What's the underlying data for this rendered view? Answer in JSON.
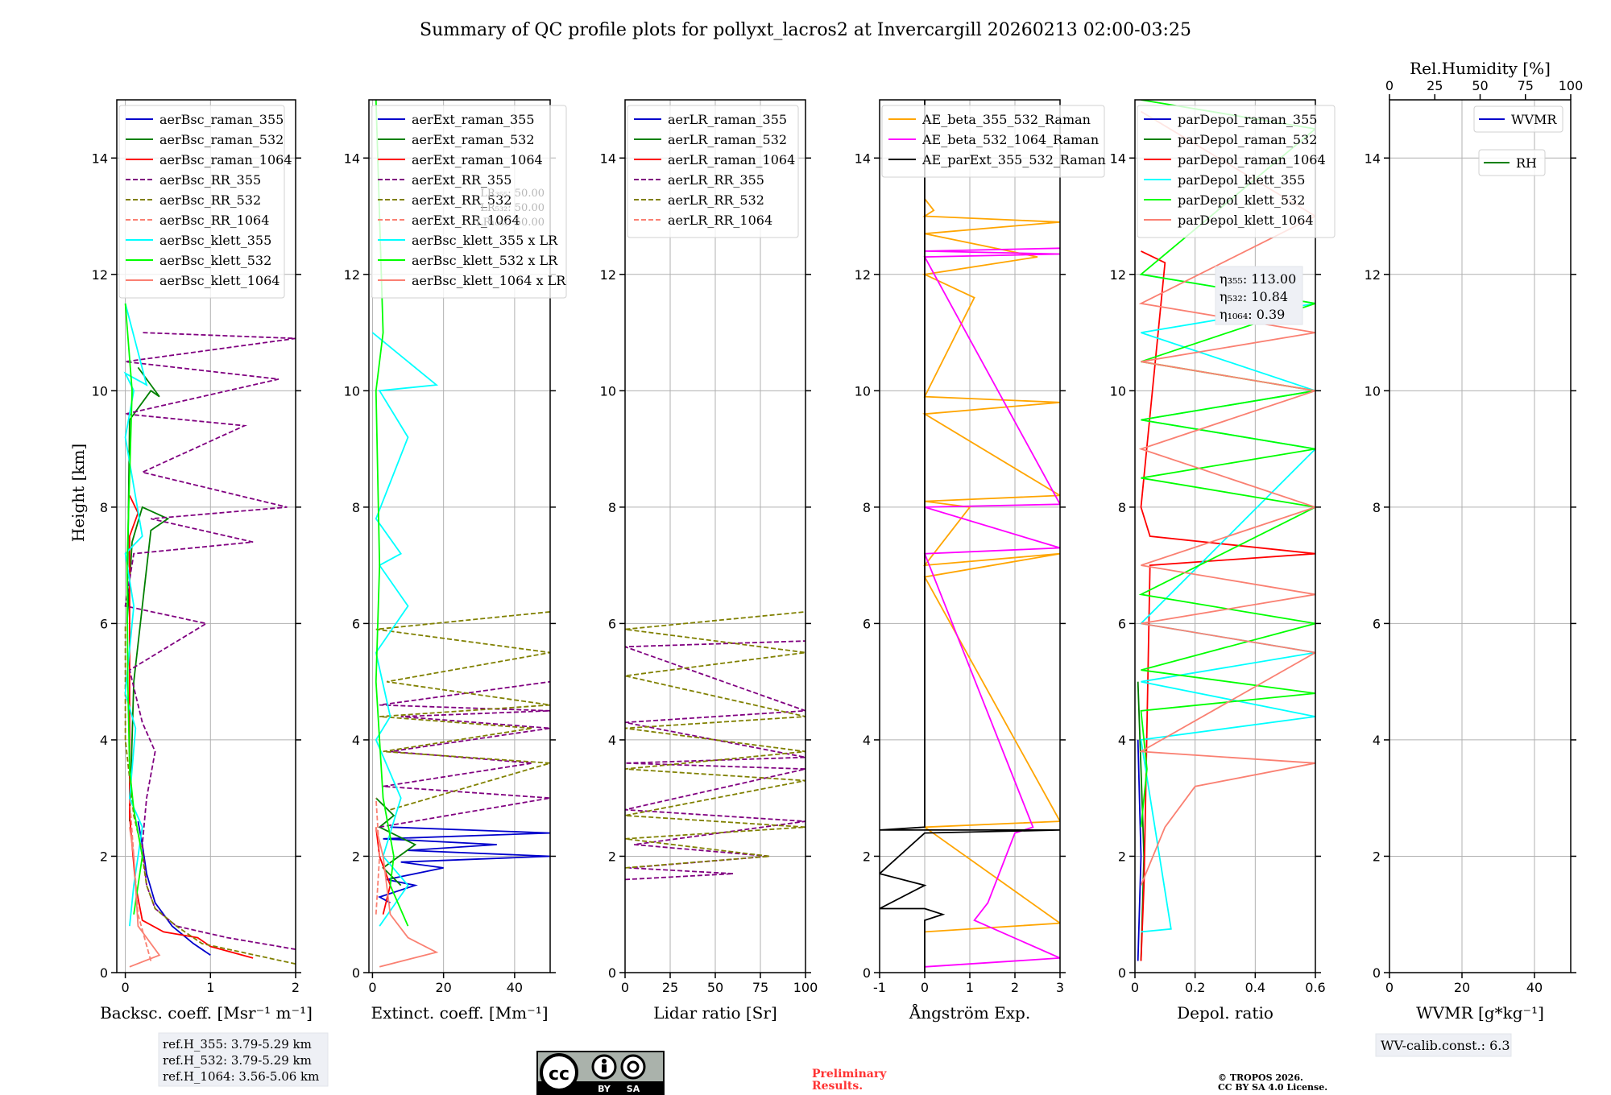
{
  "title": "Summary of QC profile plots for pollyxt_lacros2 at Invercargill 20260213 02:00-03:25",
  "ylabel": "Height [km]",
  "ylim": [
    0,
    15
  ],
  "yticks": [
    0,
    2,
    4,
    6,
    8,
    10,
    12,
    14
  ],
  "colors": {
    "blue": "#0000cc",
    "green": "#008000",
    "red": "#ff0000",
    "purple": "#800080",
    "olive": "#808000",
    "salmon": "#fa8072",
    "cyan": "#00ffff",
    "lime": "#00ff00",
    "orange": "#ffa500",
    "magenta": "#ff00ff",
    "black": "#000000"
  },
  "chart_data": [
    {
      "type": "line",
      "id": "bsc",
      "xlabel": "Backsc. coeff. [Msr⁻¹ m⁻¹]",
      "xlim": [
        -0.1,
        2
      ],
      "xticks": [
        0,
        1,
        2
      ],
      "legend_position": "top-left",
      "series": [
        {
          "name": "aerBsc_raman_355",
          "color": "blue",
          "dash": false,
          "x": [
            1.0,
            0.8,
            0.55,
            0.35,
            0.25,
            0.2,
            0.15
          ],
          "y": [
            0.3,
            0.5,
            0.8,
            1.2,
            1.7,
            2.2,
            2.6
          ]
        },
        {
          "name": "aerBsc_raman_532",
          "color": "green",
          "dash": false,
          "x": [
            0.05,
            0.1,
            0.3,
            0.5,
            0.2,
            0.08,
            0.02,
            0.05,
            0.3,
            0.4,
            0.15
          ],
          "y": [
            2.6,
            5.0,
            7.6,
            7.8,
            8.0,
            7.4,
            6.0,
            9.5,
            10.0,
            9.9,
            10.4
          ]
        },
        {
          "name": "aerBsc_raman_1064",
          "color": "red",
          "dash": false,
          "x": [
            1.5,
            1.0,
            0.85,
            0.45,
            0.2,
            0.12,
            0.05,
            0.05,
            0.15,
            0.05
          ],
          "y": [
            0.25,
            0.45,
            0.6,
            0.7,
            0.9,
            1.5,
            2.7,
            7.5,
            7.9,
            8.2
          ]
        },
        {
          "name": "aerBsc_RR_355",
          "color": "purple",
          "dash": true,
          "x": [
            2.0,
            1.2,
            0.6,
            0.35,
            0.25,
            0.2,
            0.25,
            0.35,
            0.2,
            0.05,
            0.95,
            0.0,
            0.1,
            1.5,
            0.3,
            1.9,
            0.2,
            1.4,
            0.0,
            1.8,
            0.0,
            2.0,
            0.2
          ],
          "y": [
            0.4,
            0.6,
            0.8,
            1.1,
            1.5,
            2.2,
            3.0,
            3.8,
            4.3,
            5.2,
            6.0,
            6.3,
            7.2,
            7.4,
            7.8,
            8.0,
            8.6,
            9.4,
            9.6,
            10.2,
            10.5,
            10.9,
            11.0
          ]
        },
        {
          "name": "aerBsc_RR_532",
          "color": "olive",
          "dash": true,
          "x": [
            2.0,
            0.9,
            0.6,
            0.35,
            0.25,
            0.18,
            0.1,
            0.0,
            0.0
          ],
          "y": [
            0.15,
            0.5,
            0.8,
            1.1,
            1.5,
            2.2,
            2.7,
            4.0,
            6.0
          ]
        },
        {
          "name": "aerBsc_RR_1064",
          "color": "salmon",
          "dash": true,
          "x": [
            0.3,
            0.15,
            0.1,
            0.05
          ],
          "y": [
            0.2,
            1.0,
            2.0,
            3.0
          ]
        },
        {
          "name": "aerBsc_klett_355",
          "color": "cyan",
          "dash": false,
          "x": [
            0.05,
            0.1,
            0.2,
            0.05,
            0.12,
            0.0,
            0.1,
            0.0,
            0.2,
            0.0,
            0.1,
            0.0,
            0.25,
            0.0
          ],
          "y": [
            0.8,
            1.5,
            2.5,
            3.0,
            4.2,
            4.8,
            6.3,
            7.2,
            7.5,
            9.2,
            10.0,
            10.3,
            10.1,
            11.5
          ]
        },
        {
          "name": "aerBsc_klett_532",
          "color": "lime",
          "dash": false,
          "x": [
            0.1,
            0.2,
            0.1,
            0.05,
            0.03,
            0.02,
            0.08,
            0.0
          ],
          "y": [
            1.0,
            2.0,
            2.8,
            3.5,
            5.0,
            7.0,
            10.0,
            11.5
          ]
        },
        {
          "name": "aerBsc_klett_1064",
          "color": "salmon",
          "dash": false,
          "x": [
            0.05,
            0.4,
            0.15,
            0.1,
            0.05
          ],
          "y": [
            0.1,
            0.3,
            0.8,
            2.0,
            2.5
          ]
        }
      ]
    },
    {
      "type": "line",
      "id": "ext",
      "xlabel": "Extinct. coeff. [Mm⁻¹]",
      "xlim": [
        -1,
        50
      ],
      "xticks": [
        0,
        20,
        40
      ],
      "legend_position": "top-left",
      "lr_note": [
        "LR₃₅₅: 50.00",
        "LR₅₃₂: 50.00",
        "LR₁₀₆₄: 50.00"
      ],
      "series": [
        {
          "name": "aerExt_raman_355",
          "color": "blue",
          "dash": false,
          "x": [
            5,
            2,
            12,
            4,
            20,
            8,
            50,
            10,
            35,
            3,
            50,
            5
          ],
          "y": [
            1.2,
            1.3,
            1.5,
            1.6,
            1.8,
            1.9,
            2.0,
            2.1,
            2.2,
            2.3,
            2.4,
            2.5
          ]
        },
        {
          "name": "aerExt_raman_532",
          "color": "green",
          "dash": false,
          "x": [
            8,
            3,
            12,
            2,
            6,
            1
          ],
          "y": [
            1.5,
            1.8,
            2.2,
            2.5,
            2.7,
            3.0
          ]
        },
        {
          "name": "aerExt_raman_1064",
          "color": "red",
          "dash": false,
          "x": [
            3,
            5,
            2,
            1
          ],
          "y": [
            1.0,
            1.5,
            2.0,
            2.5
          ]
        },
        {
          "name": "aerExt_RR_355",
          "color": "purple",
          "dash": true,
          "x": [
            2,
            50,
            3,
            45,
            5,
            50,
            8,
            50,
            2,
            50
          ],
          "y": [
            2.5,
            3.0,
            3.2,
            3.6,
            3.8,
            4.2,
            4.4,
            4.5,
            4.6,
            5.0
          ]
        },
        {
          "name": "aerExt_RR_532",
          "color": "olive",
          "dash": true,
          "x": [
            5,
            50,
            3,
            45,
            2,
            50,
            4,
            50,
            1,
            50
          ],
          "y": [
            2.8,
            3.6,
            3.8,
            4.2,
            4.4,
            4.6,
            5.0,
            5.5,
            5.9,
            6.2
          ]
        },
        {
          "name": "aerExt_RR_1064",
          "color": "salmon",
          "dash": true,
          "x": [
            1,
            2,
            1
          ],
          "y": [
            1.0,
            2.0,
            3.0
          ]
        },
        {
          "name": "aerBsc_klett_355 x LR",
          "color": "cyan",
          "dash": false,
          "x": [
            2,
            10,
            3,
            8,
            1,
            5,
            1,
            10,
            2,
            8,
            1,
            10,
            2,
            18,
            0
          ],
          "y": [
            0.8,
            1.5,
            2.0,
            3.0,
            4.0,
            4.4,
            5.5,
            6.3,
            7.0,
            7.2,
            7.8,
            9.2,
            10.0,
            10.1,
            11.0
          ]
        },
        {
          "name": "aerBsc_klett_532 x LR",
          "color": "lime",
          "dash": false,
          "x": [
            10,
            5,
            6,
            3,
            1,
            2,
            1,
            3,
            1
          ],
          "y": [
            0.8,
            1.5,
            2.0,
            3.0,
            5.0,
            7.0,
            10.0,
            11.0,
            15.0
          ]
        },
        {
          "name": "aerBsc_klett_1064 x LR",
          "color": "salmon",
          "dash": false,
          "x": [
            2,
            18,
            10,
            5,
            3,
            1
          ],
          "y": [
            0.1,
            0.35,
            0.6,
            1.0,
            2.0,
            2.5
          ]
        }
      ]
    },
    {
      "type": "line",
      "id": "lr",
      "xlabel": "Lidar ratio [Sr]",
      "xlim": [
        0,
        100
      ],
      "xticks": [
        0,
        25,
        50,
        75,
        100
      ],
      "legend_position": "top-left",
      "series": [
        {
          "name": "aerLR_raman_355",
          "color": "blue",
          "dash": false,
          "x": [],
          "y": []
        },
        {
          "name": "aerLR_raman_532",
          "color": "green",
          "dash": false,
          "x": [],
          "y": []
        },
        {
          "name": "aerLR_raman_1064",
          "color": "red",
          "dash": false,
          "x": [],
          "y": []
        },
        {
          "name": "aerLR_RR_355",
          "color": "purple",
          "dash": true,
          "x": [
            0,
            60,
            2,
            80,
            5,
            100,
            0,
            100,
            0,
            100,
            0,
            100,
            0,
            100
          ],
          "y": [
            1.6,
            1.7,
            1.8,
            2.0,
            2.2,
            2.6,
            2.8,
            3.5,
            3.6,
            3.7,
            4.3,
            4.5,
            5.6,
            5.7
          ]
        },
        {
          "name": "aerLR_RR_532",
          "color": "olive",
          "dash": true,
          "x": [
            0,
            80,
            0,
            100,
            0,
            100,
            0,
            100,
            0,
            100,
            0,
            100,
            0,
            100
          ],
          "y": [
            1.8,
            2.0,
            2.3,
            2.5,
            2.7,
            3.3,
            3.5,
            3.8,
            4.2,
            4.4,
            5.1,
            5.5,
            5.9,
            6.2
          ]
        },
        {
          "name": "aerLR_RR_1064",
          "color": "salmon",
          "dash": true,
          "x": [],
          "y": []
        }
      ]
    },
    {
      "type": "line",
      "id": "ae",
      "xlabel": "Ångström Exp.",
      "xlim": [
        -1,
        3
      ],
      "xticks": [
        -1,
        0,
        1,
        2,
        3
      ],
      "legend_position": "top-left",
      "series": [
        {
          "name": "AE_beta_355_532_Raman",
          "color": "orange",
          "dash": false,
          "x": [
            0,
            3,
            0,
            3,
            0,
            3,
            0,
            1,
            0,
            3,
            0,
            3,
            0,
            1.1,
            0,
            2.5,
            0,
            3,
            0,
            0.2,
            0
          ],
          "y": [
            0.7,
            0.85,
            2.5,
            2.6,
            6.8,
            7.2,
            7.0,
            8.0,
            8.1,
            8.2,
            9.6,
            9.8,
            9.9,
            11.6,
            12.0,
            12.3,
            12.7,
            12.9,
            13.0,
            13.1,
            13.3
          ]
        },
        {
          "name": "AE_beta_532_1064_Raman",
          "color": "magenta",
          "dash": false,
          "x": [
            0.0,
            3.0,
            1.1,
            1.4,
            1.6,
            1.8,
            2.0,
            2.4,
            0.0,
            3.0,
            0.0,
            3.0,
            0.0,
            3.0,
            0.0,
            3.0
          ],
          "y": [
            0.1,
            0.25,
            0.9,
            1.2,
            1.6,
            2.0,
            2.4,
            2.5,
            7.2,
            7.3,
            8.0,
            8.05,
            12.3,
            12.35,
            12.4,
            12.45
          ]
        },
        {
          "name": "AE_parExt_355_532_Raman",
          "color": "black",
          "dash": false,
          "x": [
            0.0,
            0.0,
            0.4,
            0.0,
            -1.0,
            0.0,
            -1.0,
            0.0,
            0.0,
            3.0,
            -1.0,
            0.0,
            0.0
          ],
          "y": [
            0.0,
            0.9,
            1.0,
            1.1,
            1.1,
            1.5,
            1.7,
            2.4,
            2.4,
            2.45,
            2.45,
            2.5,
            15.0
          ]
        }
      ]
    },
    {
      "type": "line",
      "id": "depol",
      "xlabel": "Depol. ratio",
      "xlim": [
        0,
        0.6
      ],
      "xticks": [
        0.0,
        0.2,
        0.4,
        0.6
      ],
      "legend_position": "top-left",
      "eta_note": [
        "η₃₅₅: 113.00",
        "η₅₃₂: 10.84",
        "η₁₀₆₄: 0.39"
      ],
      "series": [
        {
          "name": "parDepol_raman_355",
          "color": "blue",
          "dash": false,
          "x": [
            0.01,
            0.02,
            0.01
          ],
          "y": [
            0.2,
            2.0,
            4.0
          ]
        },
        {
          "name": "parDepol_raman_532",
          "color": "green",
          "dash": false,
          "x": [
            0.02,
            0.03,
            0.02,
            0.01
          ],
          "y": [
            0.2,
            2.0,
            3.5,
            5.0
          ]
        },
        {
          "name": "parDepol_raman_1064",
          "color": "red",
          "dash": false,
          "x": [
            0.02,
            0.03,
            0.05,
            0.6,
            0.05,
            0.02,
            0.1,
            0.02
          ],
          "y": [
            0.2,
            1.5,
            7.0,
            7.2,
            7.5,
            8.0,
            12.2,
            12.4
          ]
        },
        {
          "name": "parDepol_klett_355",
          "color": "cyan",
          "dash": false,
          "x": [
            0.02,
            0.12,
            0.02,
            0.6,
            0.02,
            0.6,
            0.02,
            0.6,
            0.02,
            0.6,
            0.02,
            0.6,
            0.02
          ],
          "y": [
            0.7,
            0.75,
            4.0,
            4.4,
            5.0,
            5.5,
            6.0,
            9.0,
            9.5,
            10.0,
            11.0,
            11.5,
            12.0
          ]
        },
        {
          "name": "parDepol_klett_532",
          "color": "lime",
          "dash": false,
          "x": [
            0.02,
            0.04,
            0.02,
            0.6,
            0.02,
            0.6,
            0.02,
            0.6,
            0.02,
            0.6,
            0.02,
            0.6,
            0.02,
            0.6,
            0.02,
            0.6,
            0.02
          ],
          "y": [
            2.5,
            3.5,
            4.5,
            4.8,
            5.2,
            6.0,
            6.5,
            8.0,
            8.5,
            9.0,
            9.5,
            10.0,
            10.5,
            11.5,
            12.0,
            14.5,
            15.0
          ]
        },
        {
          "name": "parDepol_klett_1064",
          "color": "salmon",
          "dash": false,
          "x": [
            0.02,
            0.1,
            0.2,
            0.6,
            0.02,
            0.6,
            0.02,
            0.6,
            0.02,
            0.6,
            0.02,
            0.6,
            0.02,
            0.6,
            0.02,
            0.6,
            0.02
          ],
          "y": [
            1.5,
            2.5,
            3.2,
            3.6,
            3.8,
            5.5,
            6.0,
            6.5,
            7.0,
            8.0,
            9.0,
            10.0,
            10.5,
            11.0,
            11.5,
            13.0,
            14.8
          ]
        }
      ]
    },
    {
      "type": "line",
      "id": "wv",
      "xlabel": "WVMR [g*kg⁻¹]",
      "xlim": [
        0,
        50
      ],
      "xticks": [
        0,
        20,
        40
      ],
      "top_label": "Rel.Humidity [%]",
      "top_xlim": [
        0,
        100
      ],
      "top_xticks": [
        0,
        25,
        50,
        75,
        100
      ],
      "legend_position": "top-right",
      "series": [
        {
          "name": "WVMR",
          "color": "blue",
          "dash": false,
          "x": [],
          "y": []
        },
        {
          "name": "RH",
          "color": "green",
          "dash": false,
          "x": [],
          "y": []
        }
      ]
    }
  ],
  "refh": [
    "ref.H_355: 3.79-5.29 km",
    "ref.H_532: 3.79-5.29 km",
    "ref.H_1064: 3.56-5.06 km"
  ],
  "wv_calib": "WV-calib.const.: 6.3",
  "license_badge": {
    "cc": "cc",
    "by": "BY",
    "sa": "SA"
  },
  "preliminary": [
    "Preliminary",
    "Results."
  ],
  "copyright": [
    "© TROPOS 2026.",
    "CC BY SA 4.0 License."
  ]
}
